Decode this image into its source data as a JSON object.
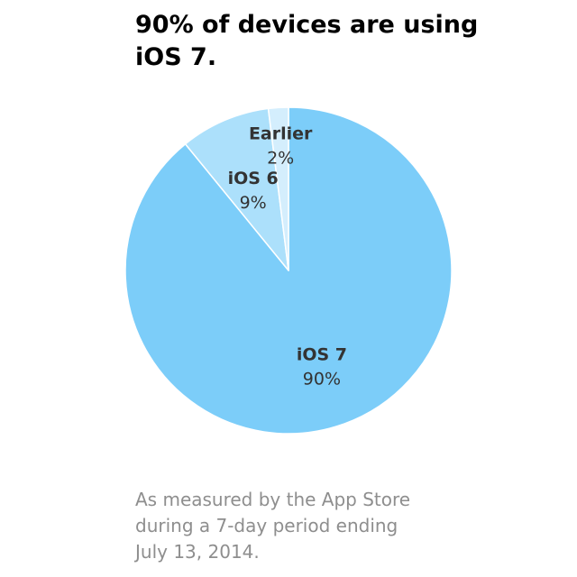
{
  "headline": {
    "line1": "90% of devices are using",
    "line2": "iOS 7."
  },
  "chart_data": {
    "type": "pie",
    "title": "90% of devices are using iOS 7.",
    "start_angle_deg": 0,
    "direction": "clockwise",
    "slices": [
      {
        "name": "iOS 7",
        "value": 90,
        "label": "iOS 7",
        "value_label": "90%",
        "color": "#7ccdf9"
      },
      {
        "name": "iOS 6",
        "value": 9,
        "label": "iOS 6",
        "value_label": "9%",
        "color": "#ace0fb"
      },
      {
        "name": "Earlier",
        "value": 2,
        "label": "Earlier",
        "value_label": "2%",
        "color": "#d4eefd"
      }
    ],
    "separator_color": "#ffffff",
    "legend": "none"
  },
  "footnote": {
    "line1": "As measured by the App Store",
    "line2": "during a 7-day period ending",
    "line3": "July 13, 2014."
  }
}
